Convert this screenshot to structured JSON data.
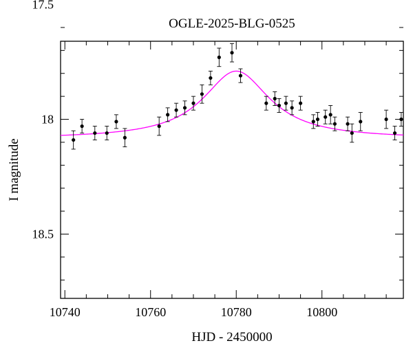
{
  "chart_data": {
    "type": "scatter",
    "title": "OGLE-2025-BLG-0525",
    "xlabel": "HJD - 2450000",
    "ylabel": "I magnitude",
    "xlim": [
      10739,
      10819
    ],
    "ylim": [
      18.78,
      17.66
    ],
    "y_inverted": true,
    "grid": false,
    "x_ticks": [
      10740,
      10760,
      10780,
      10800
    ],
    "x_tick_labels": [
      "10740",
      "10760",
      "10780",
      "10800"
    ],
    "y_ticks": [
      17.5,
      18,
      18.5
    ],
    "y_tick_labels": [
      "17.5",
      "18",
      "18.5"
    ],
    "colors": {
      "points": "#000000",
      "model": "#ff00ff",
      "axes": "#000000"
    },
    "series": [
      {
        "kind": "points-with-errorbars",
        "x": [
          10742.0,
          10744.0,
          10747.0,
          10749.8,
          10752.0,
          10754.0,
          10762.0,
          10764.0,
          10766.0,
          10768.0,
          10770.0,
          10772.0,
          10774.0,
          10776.0,
          10779.0,
          10781.0,
          10787.0,
          10789.0,
          10790.0,
          10791.6,
          10793.0,
          10795.0,
          10798.0,
          10799.0,
          10800.8,
          10802.0,
          10803.0,
          10806.0,
          10807.0,
          10809.0,
          10815.0,
          10817.0,
          10818.5
        ],
        "y": [
          18.09,
          18.03,
          18.06,
          18.06,
          18.01,
          18.08,
          18.03,
          17.98,
          17.96,
          17.95,
          17.93,
          17.89,
          17.82,
          17.73,
          17.71,
          17.81,
          17.93,
          17.91,
          17.94,
          17.93,
          17.95,
          17.93,
          18.01,
          18.0,
          17.99,
          17.98,
          18.02,
          18.02,
          18.06,
          18.01,
          18.0,
          18.06,
          18.0
        ],
        "err": [
          0.04,
          0.03,
          0.03,
          0.03,
          0.03,
          0.04,
          0.04,
          0.03,
          0.03,
          0.03,
          0.03,
          0.04,
          0.03,
          0.04,
          0.04,
          0.03,
          0.03,
          0.03,
          0.03,
          0.03,
          0.03,
          0.03,
          0.03,
          0.03,
          0.03,
          0.04,
          0.03,
          0.03,
          0.04,
          0.04,
          0.04,
          0.03,
          0.03
        ]
      },
      {
        "kind": "model-curve",
        "curve": {
          "t0": 10780,
          "baseline": 18.085,
          "peak": 17.79,
          "tau": 9.5
        }
      }
    ]
  }
}
